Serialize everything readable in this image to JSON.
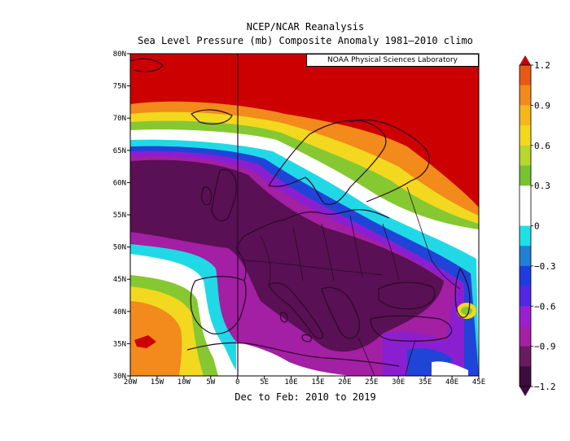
{
  "title": "NCEP/NCAR Reanalysis",
  "subtitle": "Sea Level Pressure (mb) Composite Anomaly 1981–2010 climo",
  "credit": "NOAA Physical Sciences Laboratory",
  "period": "Dec to Feb: 2010 to 2019",
  "lat_labels": [
    "80N",
    "75N",
    "70N",
    "65N",
    "60N",
    "55N",
    "50N",
    "45N",
    "40N",
    "35N",
    "30N"
  ],
  "lon_labels": [
    "20W",
    "15W",
    "10W",
    "5W",
    "0",
    "5E",
    "10E",
    "15E",
    "20E",
    "25E",
    "30E",
    "35E",
    "40E",
    "45E"
  ],
  "colorbar_labels": [
    "1.2",
    "0.9",
    "0.6",
    "0.3",
    "0",
    "−0.3",
    "−0.6",
    "−0.9",
    "−1.2"
  ],
  "colorbar_colors": [
    "#e85a14",
    "#f28a1c",
    "#f5b61e",
    "#f2d81f",
    "#b9d62c",
    "#78c232",
    "#ffffff",
    "#ffffff",
    "#1fe0e6",
    "#2080d6",
    "#1f3ce0",
    "#5028e6",
    "#9b1fd2",
    "#a61fa6",
    "#6a1a64",
    "#3c0c3c"
  ],
  "map_colors": {
    "pos_strong": "#cc0000",
    "pos_orange": "#f28a1c",
    "pos_yellow": "#f2d81f",
    "pos_green": "#86c832",
    "neutral": "#ffffff",
    "neg_cyan": "#21d9e6",
    "neg_blue": "#2044d8",
    "neg_purple": "#8a1fd2",
    "neg_magenta": "#a31fa3",
    "neg_dark": "#5a1054",
    "coast": "#2a0a2a"
  }
}
